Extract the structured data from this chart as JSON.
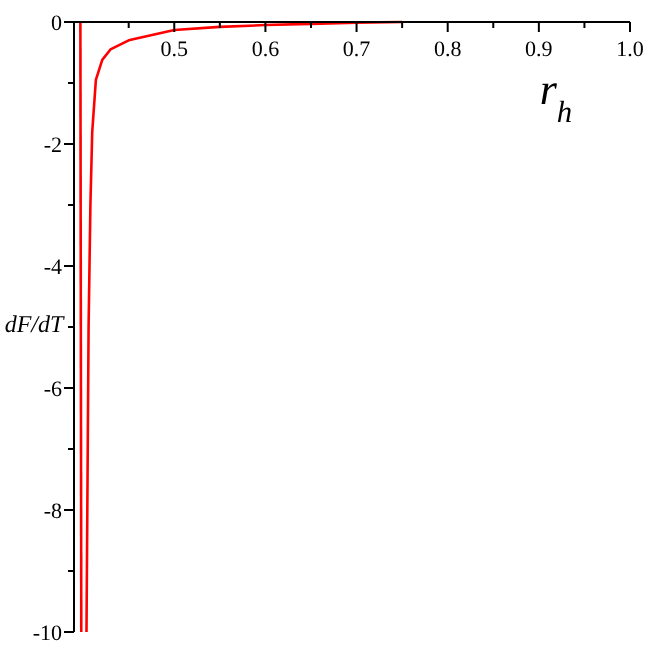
{
  "chart_data": {
    "type": "line",
    "xlabel": "r$_{h}$",
    "ylabel": "dF/dT",
    "xlim": [
      0.39,
      1.0
    ],
    "ylim": [
      -10,
      0
    ],
    "xticks": [
      {
        "value": 0.45,
        "label": null
      },
      0.5,
      {
        "value": 0.55,
        "label": null
      },
      0.6,
      {
        "value": 0.65,
        "label": null
      },
      0.7,
      {
        "value": 0.75,
        "label": null
      },
      0.8,
      {
        "value": 0.85,
        "label": null
      },
      0.9,
      {
        "value": 0.95,
        "label": null
      },
      {
        "value": 1,
        "label": "1.0"
      }
    ],
    "yticks": [
      {
        "value": -10,
        "label": "-10"
      },
      {
        "value": -9,
        "label": null
      },
      {
        "value": -8,
        "label": "-8"
      },
      {
        "value": -7,
        "label": null
      },
      {
        "value": -6,
        "label": "-6"
      },
      {
        "value": -5,
        "label": null
      },
      {
        "value": -4,
        "label": "-4"
      },
      {
        "value": -3,
        "label": null
      },
      {
        "value": -2,
        "label": "-2"
      },
      {
        "value": -1,
        "label": null
      },
      {
        "value": 0,
        "label": "0"
      }
    ],
    "grid": false,
    "marker": "none",
    "line_style": "solid",
    "series": [
      {
        "color": "#ff0000",
        "x": [
          0.397,
          0.398
        ],
        "values": [
          0,
          -10
        ]
      },
      {
        "color": "#ff0000",
        "x": [
          0.4037,
          0.406,
          0.408,
          0.41,
          0.414,
          0.421,
          0.43,
          0.45,
          0.5,
          0.55,
          0.6,
          0.65,
          0.7,
          0.75
        ],
        "values": [
          -10,
          -5,
          -3,
          -1.8,
          -0.95,
          -0.62,
          -0.45,
          -0.3,
          -0.13,
          -0.08,
          -0.05,
          -0.03,
          -0.01,
          0
        ]
      }
    ]
  }
}
